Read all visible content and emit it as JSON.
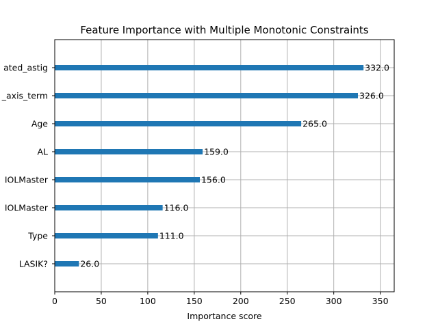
{
  "chart_data": {
    "type": "bar",
    "orientation": "horizontal",
    "title": "Feature Importance with Multiple Monotonic Constraints",
    "xlabel": "Importance score",
    "ylabel": "",
    "xlim": [
      0,
      365
    ],
    "grid": true,
    "x_ticks": [
      "0",
      "50",
      "100",
      "150",
      "200",
      "250",
      "300",
      "350"
    ],
    "categories": [
      "ated_astig",
      "_axis_term",
      "Age",
      "AL",
      "IOLMaster",
      "IOLMaster",
      "Type",
      "LASIK?"
    ],
    "values": [
      332.0,
      326.0,
      265.0,
      159.0,
      156.0,
      116.0,
      111.0,
      26.0
    ],
    "value_labels": [
      "332.0",
      "326.0",
      "265.0",
      "159.0",
      "156.0",
      "116.0",
      "111.0",
      "26.0"
    ],
    "bar_color": "#1f77b4"
  }
}
